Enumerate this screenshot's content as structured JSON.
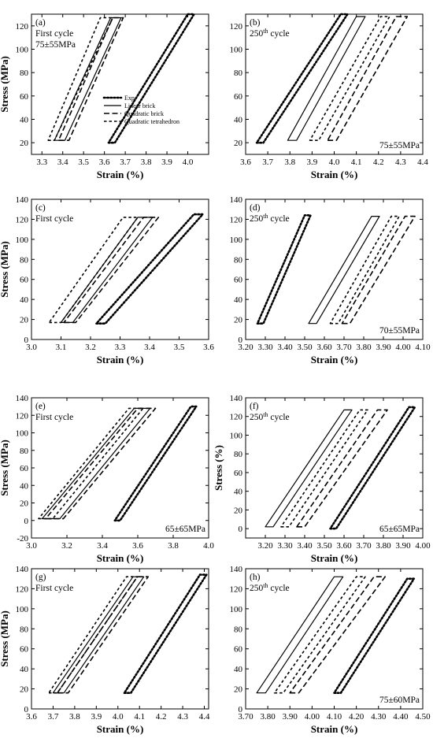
{
  "figure": {
    "legend": [
      {
        "name": "Exp.",
        "dash": "dot"
      },
      {
        "name": "Linear brick",
        "dash": "solid"
      },
      {
        "name": "Quadratic brick",
        "dash": "long"
      },
      {
        "name": "Quadratic tetrahedron",
        "dash": "short"
      }
    ]
  },
  "chart_data": [
    {
      "panel": "(a)",
      "type": "line",
      "title_lines": [
        "First cycle",
        "75±55MPa"
      ],
      "corner_text": "",
      "xlabel": "Strain (%)",
      "ylabel": "Stress (MPa)",
      "xlim": [
        3.25,
        4.1
      ],
      "ylim": [
        10,
        130
      ],
      "xticks": [
        3.3,
        3.4,
        3.5,
        3.6,
        3.7,
        3.8,
        3.9,
        4.0
      ],
      "yticks": [
        20,
        40,
        60,
        80,
        100,
        120
      ],
      "legend_shown": true,
      "series": [
        {
          "name": "Exp.",
          "dash": "dot",
          "loop": {
            "bl": [
              3.62,
              20
            ],
            "br": [
              3.65,
              20
            ],
            "tl": [
              4.0,
              130
            ],
            "tr": [
              4.03,
              130
            ]
          }
        },
        {
          "name": "Linear brick",
          "dash": "solid",
          "loop": {
            "bl": [
              3.36,
              22
            ],
            "br": [
              3.41,
              22
            ],
            "tl": [
              3.63,
              127
            ],
            "tr": [
              3.68,
              127
            ]
          }
        },
        {
          "name": "Quadratic brick",
          "dash": "long",
          "loop": {
            "bl": [
              3.38,
              22
            ],
            "br": [
              3.43,
              22
            ],
            "tl": [
              3.64,
              127
            ],
            "tr": [
              3.69,
              127
            ]
          }
        },
        {
          "name": "Quadratic tetrahedron",
          "dash": "short",
          "loop": {
            "bl": [
              3.33,
              22
            ],
            "br": [
              3.36,
              22
            ],
            "tl": [
              3.58,
              127
            ],
            "tr": [
              3.64,
              127
            ]
          }
        }
      ]
    },
    {
      "panel": "(b)",
      "type": "line",
      "title_lines": [
        "250",
        "th",
        " cycle"
      ],
      "corner_text": "75±55MPa",
      "xlabel": "Strain (%)",
      "ylabel": "",
      "xlim": [
        3.6,
        4.4
      ],
      "ylim": [
        10,
        130
      ],
      "xticks": [
        3.6,
        3.7,
        3.8,
        3.9,
        4.0,
        4.1,
        4.2,
        4.3,
        4.4
      ],
      "yticks": [
        20,
        40,
        60,
        80,
        100,
        120
      ],
      "legend_shown": false,
      "series": [
        {
          "name": "Exp.",
          "dash": "dot",
          "loop": {
            "bl": [
              3.65,
              20
            ],
            "br": [
              3.68,
              20
            ],
            "tl": [
              4.03,
              130
            ],
            "tr": [
              4.06,
              130
            ]
          }
        },
        {
          "name": "Linear brick",
          "dash": "solid",
          "loop": {
            "bl": [
              3.79,
              22
            ],
            "br": [
              3.83,
              22
            ],
            "tl": [
              4.1,
              128
            ],
            "tr": [
              4.14,
              128
            ]
          }
        },
        {
          "name": "Quadratic brick",
          "dash": "long",
          "loop": {
            "bl": [
              3.97,
              22
            ],
            "br": [
              4.01,
              22
            ],
            "tl": [
              4.28,
              128
            ],
            "tr": [
              4.33,
              128
            ]
          }
        },
        {
          "name": "Quadratic tetrahedron",
          "dash": "short",
          "loop": {
            "bl": [
              3.89,
              22
            ],
            "br": [
              3.93,
              22
            ],
            "tl": [
              4.21,
              128
            ],
            "tr": [
              4.25,
              128
            ]
          }
        }
      ]
    },
    {
      "panel": "(c)",
      "type": "line",
      "title_lines": [
        "First cycle"
      ],
      "corner_text": "",
      "xlabel": "Strain (%)",
      "ylabel": "Stress (MPa)",
      "xlim": [
        3.0,
        3.6
      ],
      "ylim": [
        0,
        140
      ],
      "xticks": [
        3.0,
        3.1,
        3.2,
        3.3,
        3.4,
        3.5,
        3.6
      ],
      "yticks": [
        0,
        20,
        40,
        60,
        80,
        100,
        120,
        140
      ],
      "legend_shown": false,
      "series": [
        {
          "name": "Exp.",
          "dash": "dot",
          "loop": {
            "bl": [
              3.22,
              16
            ],
            "br": [
              3.25,
              16
            ],
            "tl": [
              3.55,
              125
            ],
            "tr": [
              3.58,
              125
            ]
          }
        },
        {
          "name": "Linear brick",
          "dash": "solid",
          "loop": {
            "bl": [
              3.1,
              17
            ],
            "br": [
              3.14,
              17
            ],
            "tl": [
              3.36,
              122
            ],
            "tr": [
              3.41,
              122
            ]
          }
        },
        {
          "name": "Quadratic brick",
          "dash": "long",
          "loop": {
            "bl": [
              3.11,
              17
            ],
            "br": [
              3.15,
              17
            ],
            "tl": [
              3.38,
              122
            ],
            "tr": [
              3.43,
              122
            ]
          }
        },
        {
          "name": "Quadratic tetrahedron",
          "dash": "short",
          "loop": {
            "bl": [
              3.06,
              17
            ],
            "br": [
              3.1,
              17
            ],
            "tl": [
              3.31,
              122
            ],
            "tr": [
              3.36,
              122
            ]
          }
        }
      ]
    },
    {
      "panel": "(d)",
      "type": "line",
      "title_lines": [
        "250",
        "th",
        " cycle"
      ],
      "corner_text": "70±55MPa",
      "xlabel": "Strain (%)",
      "ylabel": "",
      "xlim": [
        3.2,
        4.1
      ],
      "ylim": [
        0,
        140
      ],
      "xticks": [
        3.2,
        3.3,
        3.4,
        3.5,
        3.6,
        3.7,
        3.8,
        3.9,
        4.0,
        4.1
      ],
      "yticks": [
        0,
        20,
        40,
        60,
        80,
        100,
        120,
        140
      ],
      "legend_shown": false,
      "series": [
        {
          "name": "Exp.",
          "dash": "dot",
          "loop": {
            "bl": [
              3.26,
              16
            ],
            "br": [
              3.29,
              16
            ],
            "tl": [
              3.5,
              124
            ],
            "tr": [
              3.53,
              124
            ]
          }
        },
        {
          "name": "Linear brick",
          "dash": "solid",
          "loop": {
            "bl": [
              3.52,
              16
            ],
            "br": [
              3.56,
              16
            ],
            "tl": [
              3.84,
              123
            ],
            "tr": [
              3.88,
              123
            ]
          }
        },
        {
          "name": "Quadratic brick",
          "dash": "long",
          "loop": {
            "bl": [
              3.69,
              16
            ],
            "br": [
              3.73,
              16
            ],
            "tl": [
              4.01,
              123
            ],
            "tr": [
              4.06,
              123
            ]
          }
        },
        {
          "name": "Quadratic tetrahedron",
          "dash": "short",
          "loop": {
            "bl": [
              3.63,
              16
            ],
            "br": [
              3.67,
              16
            ],
            "tl": [
              3.94,
              123
            ],
            "tr": [
              3.98,
              123
            ]
          }
        }
      ]
    },
    {
      "panel": "(e)",
      "type": "line",
      "title_lines": [
        "First cycle"
      ],
      "corner_text": "65±65MPa",
      "xlabel": "Strain (%)",
      "ylabel": "Stress (MPa)",
      "xlim": [
        3.0,
        4.0
      ],
      "ylim": [
        -20,
        140
      ],
      "xticks": [
        3.0,
        3.2,
        3.4,
        3.6,
        3.8,
        4.0
      ],
      "yticks": [
        -20,
        0,
        20,
        40,
        60,
        80,
        100,
        120,
        140
      ],
      "legend_shown": false,
      "series": [
        {
          "name": "Exp.",
          "dash": "dot",
          "loop": {
            "bl": [
              3.47,
              0
            ],
            "br": [
              3.5,
              0
            ],
            "tl": [
              3.9,
              130
            ],
            "tr": [
              3.93,
              130
            ]
          }
        },
        {
          "name": "Linear brick",
          "dash": "solid",
          "loop": {
            "bl": [
              3.06,
              2
            ],
            "br": [
              3.16,
              2
            ],
            "tl": [
              3.58,
              128
            ],
            "tr": [
              3.67,
              128
            ]
          }
        },
        {
          "name": "Quadratic brick",
          "dash": "long",
          "loop": {
            "bl": [
              3.08,
              2
            ],
            "br": [
              3.18,
              2
            ],
            "tl": [
              3.6,
              128
            ],
            "tr": [
              3.7,
              128
            ]
          }
        },
        {
          "name": "Quadratic tetrahedron",
          "dash": "short",
          "loop": {
            "bl": [
              3.04,
              2
            ],
            "br": [
              3.12,
              2
            ],
            "tl": [
              3.55,
              128
            ],
            "tr": [
              3.63,
              128
            ]
          }
        }
      ]
    },
    {
      "panel": "(f)",
      "type": "line",
      "title_lines": [
        "250",
        "th",
        " cycle"
      ],
      "corner_text": "65±65MPa",
      "xlabel": "Strain (%)",
      "ylabel": "Stress (%)",
      "xlim": [
        3.1,
        4.0
      ],
      "ylim": [
        -10,
        140
      ],
      "xticks": [
        3.2,
        3.3,
        3.4,
        3.5,
        3.6,
        3.7,
        3.8,
        3.9,
        4.0
      ],
      "yticks": [
        0,
        20,
        40,
        60,
        80,
        100,
        120,
        140
      ],
      "legend_shown": false,
      "series": [
        {
          "name": "Exp.",
          "dash": "dot",
          "loop": {
            "bl": [
              3.53,
              0
            ],
            "br": [
              3.56,
              0
            ],
            "tl": [
              3.93,
              130
            ],
            "tr": [
              3.96,
              130
            ]
          }
        },
        {
          "name": "Linear brick",
          "dash": "solid",
          "loop": {
            "bl": [
              3.2,
              2
            ],
            "br": [
              3.24,
              2
            ],
            "tl": [
              3.6,
              127
            ],
            "tr": [
              3.64,
              127
            ]
          }
        },
        {
          "name": "Quadratic brick",
          "dash": "long",
          "loop": {
            "bl": [
              3.36,
              2
            ],
            "br": [
              3.4,
              2
            ],
            "tl": [
              3.77,
              127
            ],
            "tr": [
              3.82,
              127
            ]
          }
        },
        {
          "name": "Quadratic tetrahedron",
          "dash": "short",
          "loop": {
            "bl": [
              3.28,
              2
            ],
            "br": [
              3.32,
              2
            ],
            "tl": [
              3.68,
              127
            ],
            "tr": [
              3.72,
              127
            ]
          }
        }
      ]
    },
    {
      "panel": "(g)",
      "type": "line",
      "title_lines": [
        "First cycle"
      ],
      "corner_text": "",
      "xlabel": "Strain (%)",
      "ylabel": "Stress (MPa)",
      "xlim": [
        3.6,
        4.42
      ],
      "ylim": [
        0,
        140
      ],
      "xticks": [
        3.6,
        3.7,
        3.8,
        3.9,
        4.0,
        4.1,
        4.2,
        4.3,
        4.4
      ],
      "yticks": [
        0,
        20,
        40,
        60,
        80,
        100,
        120,
        140
      ],
      "legend_shown": false,
      "series": [
        {
          "name": "Exp.",
          "dash": "dot",
          "loop": {
            "bl": [
              4.03,
              16
            ],
            "br": [
              4.06,
              16
            ],
            "tl": [
              4.38,
              134
            ],
            "tr": [
              4.41,
              134
            ]
          }
        },
        {
          "name": "Linear brick",
          "dash": "solid",
          "loop": {
            "bl": [
              3.7,
              16
            ],
            "br": [
              3.75,
              16
            ],
            "tl": [
              4.07,
              132
            ],
            "tr": [
              4.12,
              132
            ]
          }
        },
        {
          "name": "Quadratic brick",
          "dash": "long",
          "loop": {
            "bl": [
              3.72,
              16
            ],
            "br": [
              3.77,
              16
            ],
            "tl": [
              4.09,
              132
            ],
            "tr": [
              4.14,
              132
            ]
          }
        },
        {
          "name": "Quadratic tetrahedron",
          "dash": "short",
          "loop": {
            "bl": [
              3.68,
              16
            ],
            "br": [
              3.72,
              16
            ],
            "tl": [
              4.04,
              132
            ],
            "tr": [
              4.09,
              132
            ]
          }
        }
      ]
    },
    {
      "panel": "(h)",
      "type": "line",
      "title_lines": [
        "250",
        "th",
        " cycle"
      ],
      "corner_text": "75±60MPa",
      "xlabel": "Strain (%)",
      "ylabel": "",
      "xlim": [
        3.7,
        4.5
      ],
      "ylim": [
        0,
        140
      ],
      "xticks": [
        3.7,
        3.8,
        3.9,
        4.0,
        4.1,
        4.2,
        4.3,
        4.4,
        4.5
      ],
      "yticks": [
        0,
        20,
        40,
        60,
        80,
        100,
        120,
        140
      ],
      "legend_shown": false,
      "series": [
        {
          "name": "Exp.",
          "dash": "dot",
          "loop": {
            "bl": [
              4.1,
              16
            ],
            "br": [
              4.13,
              16
            ],
            "tl": [
              4.43,
              130
            ],
            "tr": [
              4.46,
              130
            ]
          }
        },
        {
          "name": "Linear brick",
          "dash": "solid",
          "loop": {
            "bl": [
              3.75,
              16
            ],
            "br": [
              3.79,
              16
            ],
            "tl": [
              4.1,
              132
            ],
            "tr": [
              4.14,
              132
            ]
          }
        },
        {
          "name": "Quadratic brick",
          "dash": "long",
          "loop": {
            "bl": [
              3.9,
              16
            ],
            "br": [
              3.94,
              16
            ],
            "tl": [
              4.28,
              132
            ],
            "tr": [
              4.33,
              132
            ]
          }
        },
        {
          "name": "Quadratic tetrahedron",
          "dash": "short",
          "loop": {
            "bl": [
              3.83,
              16
            ],
            "br": [
              3.87,
              16
            ],
            "tl": [
              4.2,
              132
            ],
            "tr": [
              4.24,
              132
            ]
          }
        }
      ]
    }
  ]
}
